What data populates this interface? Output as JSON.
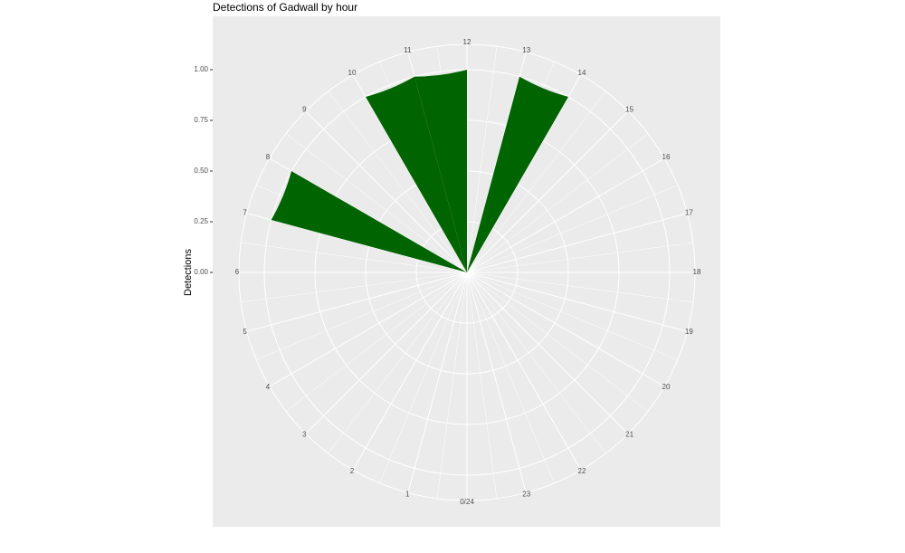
{
  "chart_data": {
    "type": "polar_bar",
    "title": "Detections of Gadwall by hour",
    "y_label": "Detections",
    "categories": [
      "0/24",
      "1",
      "2",
      "3",
      "4",
      "5",
      "6",
      "7",
      "8",
      "9",
      "10",
      "11",
      "12",
      "13",
      "14",
      "15",
      "16",
      "17",
      "18",
      "19",
      "20",
      "21",
      "22",
      "23"
    ],
    "values": [
      0,
      0,
      0,
      0,
      0,
      0,
      0,
      1,
      0,
      0,
      1,
      1,
      0,
      1,
      0,
      0,
      0,
      0,
      0,
      0,
      0,
      0,
      0,
      0
    ],
    "color": "#006400",
    "ylim": [
      0,
      1.125
    ],
    "yticks": [
      {
        "value": 0,
        "label": "0.00"
      },
      {
        "value": 0.25,
        "label": "0.25"
      },
      {
        "value": 0.5,
        "label": "0.50"
      },
      {
        "value": 0.75,
        "label": "0.75"
      },
      {
        "value": 1,
        "label": "1.00"
      }
    ],
    "grid": true
  }
}
